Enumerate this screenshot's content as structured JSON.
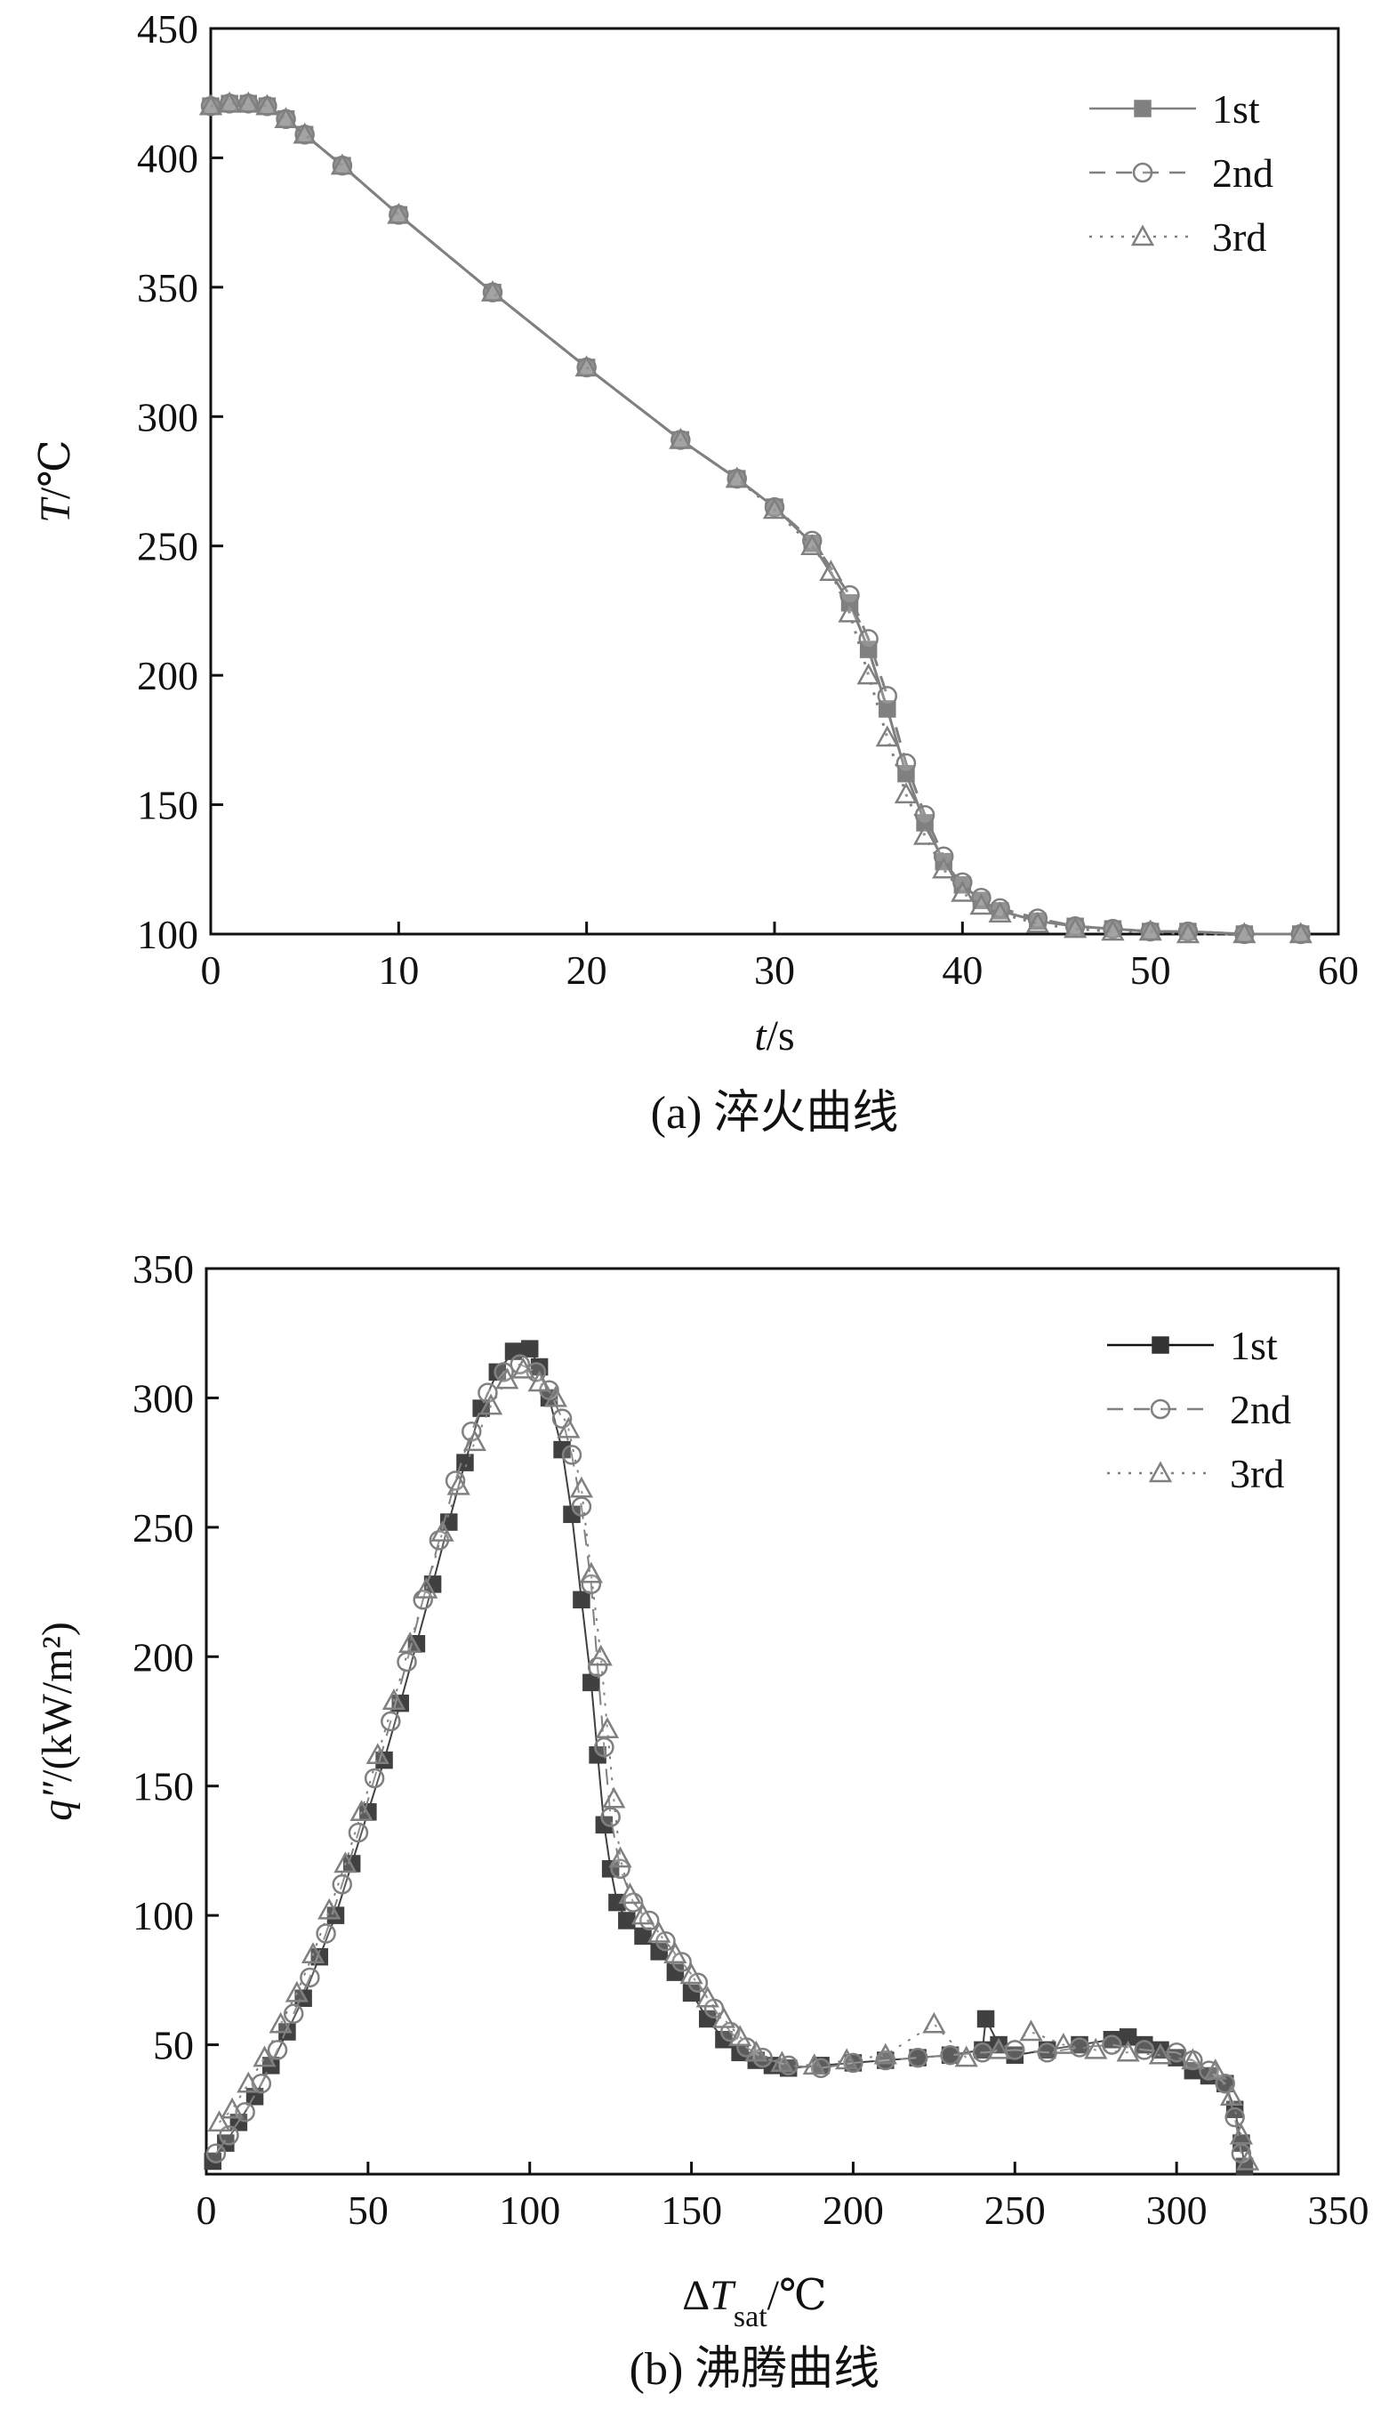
{
  "chart_data": [
    {
      "type": "line",
      "caption": "(a) 淬火曲线",
      "xlabel": "t/s",
      "ylabel": "T/℃",
      "xlim": [
        0,
        60
      ],
      "ylim": [
        100,
        450
      ],
      "xticks": [
        0,
        10,
        20,
        30,
        40,
        50,
        60
      ],
      "yticks": [
        100,
        150,
        200,
        250,
        300,
        350,
        400,
        450
      ],
      "x_tick_labels": [
        "0",
        "10",
        "20",
        "30",
        "40",
        "50",
        "60"
      ],
      "y_tick_labels": [
        "100",
        "150",
        "200",
        "250",
        "300",
        "350",
        "400",
        "450"
      ],
      "legend_position": "top-right",
      "grid": false,
      "series": [
        {
          "name": "1st",
          "marker": "square",
          "line": "solid",
          "color": "#808080",
          "x": [
            0,
            1,
            2,
            3,
            4,
            5,
            7,
            10,
            15,
            20,
            25,
            28,
            30,
            32,
            34,
            35,
            36,
            37,
            38,
            39,
            40,
            41,
            42,
            44,
            46,
            48,
            50,
            52,
            55,
            58
          ],
          "y": [
            420,
            421,
            421,
            420,
            415,
            409,
            397,
            378,
            348,
            319,
            291,
            276,
            265,
            251,
            228,
            210,
            187,
            162,
            143,
            128,
            119,
            113,
            109,
            105,
            103,
            102,
            101,
            101,
            100,
            100
          ]
        },
        {
          "name": "2nd",
          "marker": "circle",
          "line": "dashed",
          "color": "#808080",
          "x": [
            0,
            1,
            2,
            3,
            4,
            5,
            7,
            10,
            15,
            20,
            25,
            28,
            30,
            32,
            34,
            35,
            36,
            37,
            38,
            39,
            40,
            41,
            42,
            44,
            46,
            48,
            50,
            52,
            55,
            58
          ],
          "y": [
            420,
            421,
            421,
            420,
            415,
            409,
            397,
            378,
            348,
            319,
            291,
            276,
            265,
            252,
            231,
            214,
            192,
            166,
            146,
            130,
            120,
            114,
            110,
            106,
            103,
            102,
            101,
            101,
            100,
            100
          ]
        },
        {
          "name": "3rd",
          "marker": "triangle",
          "line": "dotted",
          "color": "#808080",
          "x": [
            0,
            1,
            2,
            3,
            4,
            5,
            7,
            10,
            15,
            20,
            25,
            28,
            30,
            32,
            33,
            34,
            35,
            36,
            37,
            38,
            39,
            40,
            41,
            42,
            44,
            46,
            48,
            50,
            52,
            55,
            58
          ],
          "y": [
            420,
            421,
            421,
            420,
            415,
            409,
            397,
            378,
            348,
            319,
            291,
            276,
            264,
            250,
            240,
            224,
            200,
            176,
            154,
            138,
            125,
            116,
            111,
            108,
            104,
            102,
            101,
            101,
            100,
            100,
            100
          ]
        }
      ]
    },
    {
      "type": "scatter",
      "caption": "(b) 沸腾曲线",
      "xlabel": "ΔT_sat/℃",
      "ylabel": "q″/(kW/m²)",
      "xlim": [
        0,
        350
      ],
      "ylim": [
        0,
        350
      ],
      "xticks": [
        0,
        50,
        100,
        150,
        200,
        250,
        300,
        350
      ],
      "yticks": [
        50,
        100,
        150,
        200,
        250,
        300,
        350
      ],
      "x_tick_labels": [
        "0",
        "50",
        "100",
        "150",
        "200",
        "250",
        "300",
        "350"
      ],
      "y_tick_labels": [
        "50",
        "100",
        "150",
        "200",
        "250",
        "300",
        "350"
      ],
      "legend_position": "top-right",
      "grid": false,
      "series": [
        {
          "name": "1st",
          "marker": "square",
          "line": "solid",
          "color": "#404040",
          "x": [
            2,
            6,
            10,
            15,
            20,
            25,
            30,
            35,
            40,
            45,
            50,
            55,
            60,
            65,
            70,
            75,
            80,
            85,
            90,
            95,
            100,
            103,
            106,
            110,
            113,
            116,
            119,
            121,
            123,
            125,
            127,
            130,
            135,
            140,
            145,
            150,
            155,
            160,
            165,
            170,
            175,
            180,
            190,
            200,
            210,
            220,
            230,
            240,
            241,
            245,
            250,
            260,
            270,
            280,
            285,
            290,
            295,
            300,
            305,
            310,
            315,
            318,
            320,
            321
          ],
          "y": [
            5,
            12,
            20,
            30,
            42,
            55,
            68,
            84,
            100,
            120,
            140,
            160,
            182,
            205,
            228,
            252,
            275,
            296,
            310,
            318,
            319,
            312,
            300,
            280,
            255,
            222,
            190,
            162,
            135,
            118,
            105,
            98,
            92,
            86,
            78,
            70,
            60,
            52,
            47,
            44,
            42,
            41,
            42,
            43,
            44,
            45,
            46,
            48,
            60,
            50,
            46,
            48,
            50,
            52,
            53,
            50,
            48,
            45,
            40,
            38,
            35,
            25,
            12,
            3
          ]
        },
        {
          "name": "2nd",
          "marker": "circle",
          "line": "dashed",
          "color": "#808080",
          "x": [
            3,
            7,
            12,
            17,
            22,
            27,
            32,
            37,
            42,
            47,
            52,
            57,
            62,
            67,
            72,
            77,
            82,
            87,
            92,
            97,
            102,
            106,
            110,
            113,
            116,
            119,
            121,
            123,
            125,
            128,
            132,
            137,
            142,
            147,
            152,
            157,
            162,
            167,
            172,
            180,
            190,
            200,
            210,
            220,
            230,
            240,
            250,
            260,
            270,
            280,
            290,
            300,
            305,
            310,
            315,
            318,
            320
          ],
          "y": [
            8,
            15,
            24,
            35,
            48,
            62,
            76,
            93,
            112,
            132,
            153,
            175,
            198,
            222,
            245,
            268,
            287,
            302,
            310,
            313,
            310,
            303,
            292,
            278,
            258,
            228,
            196,
            165,
            138,
            118,
            105,
            98,
            90,
            82,
            74,
            64,
            55,
            49,
            45,
            42,
            41,
            43,
            44,
            45,
            46,
            47,
            48,
            47,
            49,
            50,
            48,
            47,
            44,
            40,
            35,
            22,
            8
          ]
        },
        {
          "name": "3rd",
          "marker": "triangle",
          "line": "dotted",
          "color": "#808080",
          "x": [
            4,
            8,
            13,
            18,
            23,
            28,
            33,
            38,
            43,
            48,
            53,
            58,
            63,
            68,
            73,
            78,
            83,
            88,
            93,
            98,
            103,
            108,
            112,
            116,
            119,
            122,
            124,
            126,
            128,
            131,
            135,
            140,
            145,
            150,
            155,
            160,
            165,
            170,
            178,
            188,
            198,
            210,
            225,
            235,
            245,
            255,
            265,
            275,
            285,
            295,
            305,
            312,
            317,
            320,
            322
          ],
          "y": [
            20,
            25,
            35,
            45,
            58,
            70,
            85,
            102,
            120,
            140,
            162,
            183,
            205,
            226,
            248,
            266,
            283,
            297,
            307,
            311,
            306,
            300,
            288,
            265,
            232,
            200,
            172,
            145,
            122,
            108,
            100,
            93,
            85,
            77,
            68,
            60,
            53,
            47,
            43,
            42,
            44,
            46,
            58,
            45,
            48,
            55,
            50,
            48,
            47,
            46,
            44,
            40,
            30,
            15,
            5
          ]
        }
      ]
    }
  ]
}
